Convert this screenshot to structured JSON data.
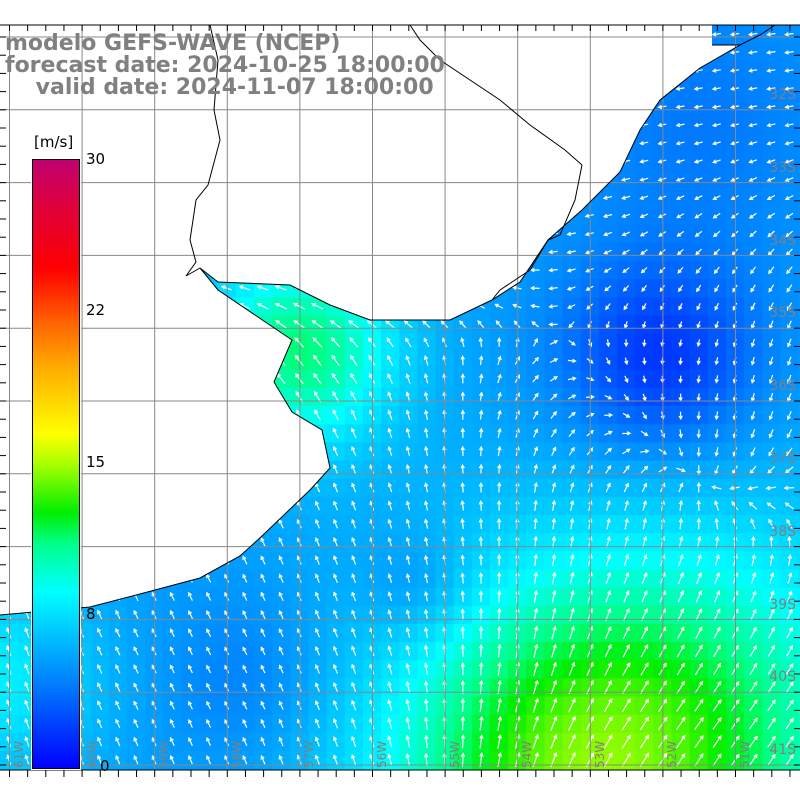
{
  "title": {
    "line1": "modelo GEFS-WAVE (NCEP)",
    "line2": "forecast date: 2024-10-25 18:00:00",
    "line3": "    valid date: 2024-11-07 18:00:00"
  },
  "colorbar": {
    "unit": "[m/s]",
    "labels": [
      "30",
      "22",
      "15",
      "8",
      "0"
    ],
    "colors": [
      "#0000ff",
      "#0088ff",
      "#00ffff",
      "#00ee00",
      "#ffff00",
      "#ff0000",
      "#c0006f"
    ]
  },
  "lat_labels": [
    "32S",
    "33S",
    "34S",
    "35S",
    "36S",
    "37S",
    "38S",
    "39S",
    "40S",
    "41S"
  ],
  "lon_labels": [
    "61W",
    "60W",
    "59W",
    "58W",
    "57W",
    "56W",
    "55W",
    "54W",
    "53W",
    "52W",
    "51W"
  ]
}
